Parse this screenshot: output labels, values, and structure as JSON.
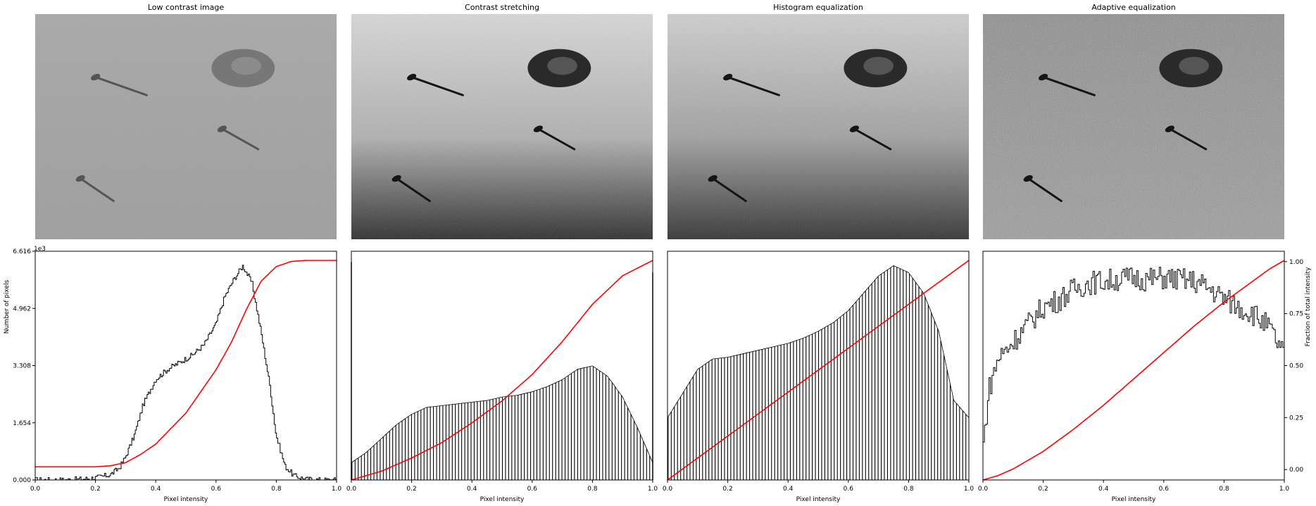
{
  "figure": {
    "shared_xlabel": "Pixel intensity",
    "left_ylabel": "Number of pixels",
    "right_ylabel": "Fraction of total intensity",
    "y_scale_note": "1e3",
    "colors": {
      "histogram": "#000000",
      "cdf": "#ff0000",
      "axes": "#000000"
    }
  },
  "chart_data": [
    {
      "type": "image",
      "title": "Low contrast image",
      "description_icon": "image-with-nails-and-coin",
      "image_stats": {
        "intensity_min": 0.3,
        "intensity_max": 0.9,
        "tone": "low-contrast-gray"
      }
    },
    {
      "type": "image",
      "title": "Contrast stretching",
      "description_icon": "image-with-nails-and-coin",
      "image_stats": {
        "intensity_min": 0.0,
        "intensity_max": 1.0,
        "tone": "stretched-gray"
      }
    },
    {
      "type": "image",
      "title": "Histogram equalization",
      "description_icon": "image-with-nails-and-coin",
      "image_stats": {
        "intensity_min": 0.0,
        "intensity_max": 1.0,
        "tone": "equalized-gray"
      }
    },
    {
      "type": "image",
      "title": "Adaptive equalization",
      "description_icon": "image-with-nails-and-coin",
      "image_stats": {
        "intensity_min": 0.0,
        "intensity_max": 1.0,
        "tone": "adaptive-noisy-gray"
      }
    },
    {
      "type": "histogram_with_cdf",
      "xlabel": "Pixel intensity",
      "ylabel": "Number of pixels",
      "xlim": [
        0,
        1
      ],
      "ylim": [
        0,
        6616
      ],
      "yticks": [
        "0.000",
        "1.654",
        "3.308",
        "4.962",
        "6.616"
      ],
      "ytick_values": [
        0,
        1654,
        3308,
        4962,
        6616
      ],
      "xticks": [
        "0.0",
        "0.2",
        "0.4",
        "0.6",
        "0.8",
        "1.0"
      ],
      "histogram": {
        "x": [
          0.1,
          0.15,
          0.2,
          0.25,
          0.28,
          0.3,
          0.33,
          0.36,
          0.4,
          0.44,
          0.48,
          0.52,
          0.56,
          0.6,
          0.63,
          0.66,
          0.69,
          0.72,
          0.75,
          0.78,
          0.8,
          0.83,
          0.86,
          0.9,
          0.95
        ],
        "y": [
          0,
          20,
          60,
          150,
          350,
          650,
          1300,
          2200,
          2900,
          3200,
          3400,
          3600,
          3900,
          4500,
          5300,
          5800,
          6200,
          5700,
          4300,
          2700,
          1300,
          400,
          120,
          20,
          0
        ]
      },
      "cdf": {
        "x": [
          0,
          0.1,
          0.2,
          0.25,
          0.3,
          0.35,
          0.4,
          0.5,
          0.6,
          0.65,
          0.7,
          0.75,
          0.8,
          0.85,
          0.9,
          1.0
        ],
        "y": [
          0,
          0,
          0,
          0.005,
          0.02,
          0.06,
          0.11,
          0.26,
          0.47,
          0.6,
          0.76,
          0.9,
          0.97,
          0.995,
          1.0,
          1.0
        ]
      },
      "cdf_offset": 0.06
    },
    {
      "type": "histogram_with_cdf",
      "xlabel": "Pixel intensity",
      "xlim": [
        0,
        1
      ],
      "ylim": [
        0,
        6616
      ],
      "xticks": [
        "0.0",
        "0.2",
        "0.4",
        "0.6",
        "0.8",
        "1.0"
      ],
      "histogram": {
        "x": [
          0,
          0.05,
          0.1,
          0.15,
          0.2,
          0.25,
          0.3,
          0.35,
          0.4,
          0.45,
          0.5,
          0.55,
          0.6,
          0.65,
          0.7,
          0.75,
          0.8,
          0.85,
          0.9,
          0.95,
          1.0
        ],
        "y": [
          500,
          800,
          1200,
          1600,
          1900,
          2100,
          2150,
          2200,
          2250,
          2300,
          2400,
          2450,
          2550,
          2700,
          2900,
          3200,
          3300,
          3000,
          2400,
          1500,
          500
        ]
      },
      "cdf": {
        "x": [
          0,
          0.1,
          0.2,
          0.3,
          0.4,
          0.5,
          0.6,
          0.7,
          0.8,
          0.9,
          1.0
        ],
        "y": [
          0,
          0.04,
          0.1,
          0.17,
          0.26,
          0.36,
          0.48,
          0.63,
          0.8,
          0.93,
          1.0
        ]
      },
      "stem_spacing": 0.0104,
      "edge_spikes": [
        {
          "x": 0.0,
          "y": 6300
        },
        {
          "x": 1.0,
          "y": 6000
        }
      ]
    },
    {
      "type": "histogram_with_cdf",
      "xlabel": "Pixel intensity",
      "xlim": [
        0,
        1
      ],
      "ylim": [
        0,
        6616
      ],
      "xticks": [
        "0.0",
        "0.2",
        "0.4",
        "0.6",
        "0.8",
        "1.0"
      ],
      "histogram": {
        "x": [
          0,
          0.05,
          0.1,
          0.15,
          0.2,
          0.25,
          0.3,
          0.35,
          0.4,
          0.45,
          0.5,
          0.55,
          0.6,
          0.65,
          0.7,
          0.75,
          0.8,
          0.85,
          0.9,
          0.95,
          1.0
        ],
        "y": [
          1800,
          2500,
          3200,
          3500,
          3550,
          3650,
          3750,
          3850,
          3950,
          4100,
          4300,
          4550,
          4900,
          5400,
          5900,
          6200,
          6000,
          5400,
          4300,
          2300,
          1800
        ]
      },
      "cdf": {
        "x": [
          0,
          0.2,
          0.4,
          0.6,
          0.8,
          1.0
        ],
        "y": [
          0,
          0.2,
          0.4,
          0.6,
          0.8,
          1.0
        ]
      },
      "stem_spacing": 0.0104
    },
    {
      "type": "histogram_with_cdf",
      "xlabel": "Pixel intensity",
      "ylabel_right": "Fraction of total intensity",
      "xlim": [
        0,
        1
      ],
      "ylim": [
        0,
        6616
      ],
      "y2lim": [
        -0.05,
        1.05
      ],
      "y2ticks": [
        "0.00",
        "0.25",
        "0.50",
        "0.75",
        "1.00"
      ],
      "y2tick_values": [
        0,
        0.25,
        0.5,
        0.75,
        1.0
      ],
      "xticks": [
        "0.0",
        "0.2",
        "0.4",
        "0.6",
        "0.8",
        "1.0"
      ],
      "histogram": {
        "x": [
          0,
          0.02,
          0.05,
          0.1,
          0.15,
          0.2,
          0.25,
          0.3,
          0.35,
          0.4,
          0.45,
          0.5,
          0.55,
          0.6,
          0.65,
          0.7,
          0.75,
          0.8,
          0.85,
          0.9,
          0.95,
          1.0
        ],
        "y": [
          800,
          2600,
          3500,
          4000,
          4500,
          5000,
          5200,
          5500,
          5700,
          5750,
          5800,
          5850,
          5800,
          5850,
          5800,
          5750,
          5550,
          5250,
          5000,
          4800,
          4400,
          3600
        ]
      },
      "cdf": {
        "x": [
          0,
          0.05,
          0.1,
          0.2,
          0.3,
          0.4,
          0.5,
          0.6,
          0.7,
          0.8,
          0.9,
          0.95,
          1.0
        ],
        "y": [
          0,
          0.02,
          0.05,
          0.13,
          0.23,
          0.34,
          0.46,
          0.58,
          0.7,
          0.81,
          0.91,
          0.96,
          1.0
        ]
      }
    }
  ]
}
